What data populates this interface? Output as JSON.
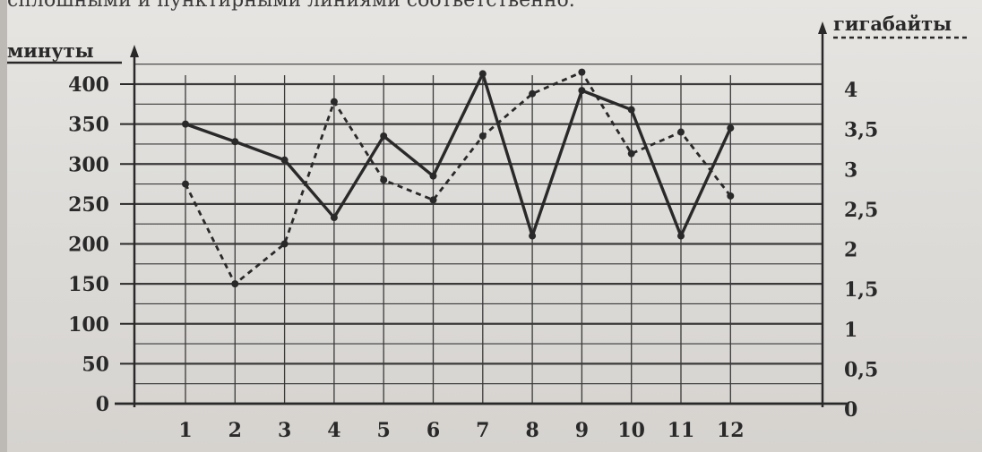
{
  "top_text": "сплошными и пунктирными линиями соответственно.",
  "chart_data": {
    "type": "line",
    "categories": [
      "1",
      "2",
      "3",
      "4",
      "5",
      "6",
      "7",
      "8",
      "9",
      "10",
      "11",
      "12"
    ],
    "y_left_label": "минуты",
    "y_right_label": "гигабайты",
    "y_left_ticks": [
      "0",
      "50",
      "100",
      "150",
      "200",
      "250",
      "300",
      "350",
      "400"
    ],
    "y_right_ticks": [
      "0",
      "0,5",
      "1",
      "1,5",
      "2",
      "2,5",
      "3",
      "3,5",
      "4"
    ],
    "ylim_left": [
      0,
      400
    ],
    "ylim_right": [
      0,
      4
    ],
    "grid": true,
    "series": [
      {
        "axis": "left",
        "style": "solid",
        "values": [
          350,
          328,
          305,
          233,
          335,
          285,
          413,
          210,
          392,
          368,
          210,
          345
        ]
      },
      {
        "axis": "right",
        "style": "dashed",
        "values": [
          2.75,
          1.5,
          2.0,
          3.78,
          2.8,
          2.55,
          3.35,
          3.88,
          4.15,
          3.13,
          3.4,
          2.6
        ]
      }
    ]
  },
  "colors": {
    "ink": "#2a2929",
    "grid": "#3b3a3a",
    "paper": "#e4e2df"
  }
}
